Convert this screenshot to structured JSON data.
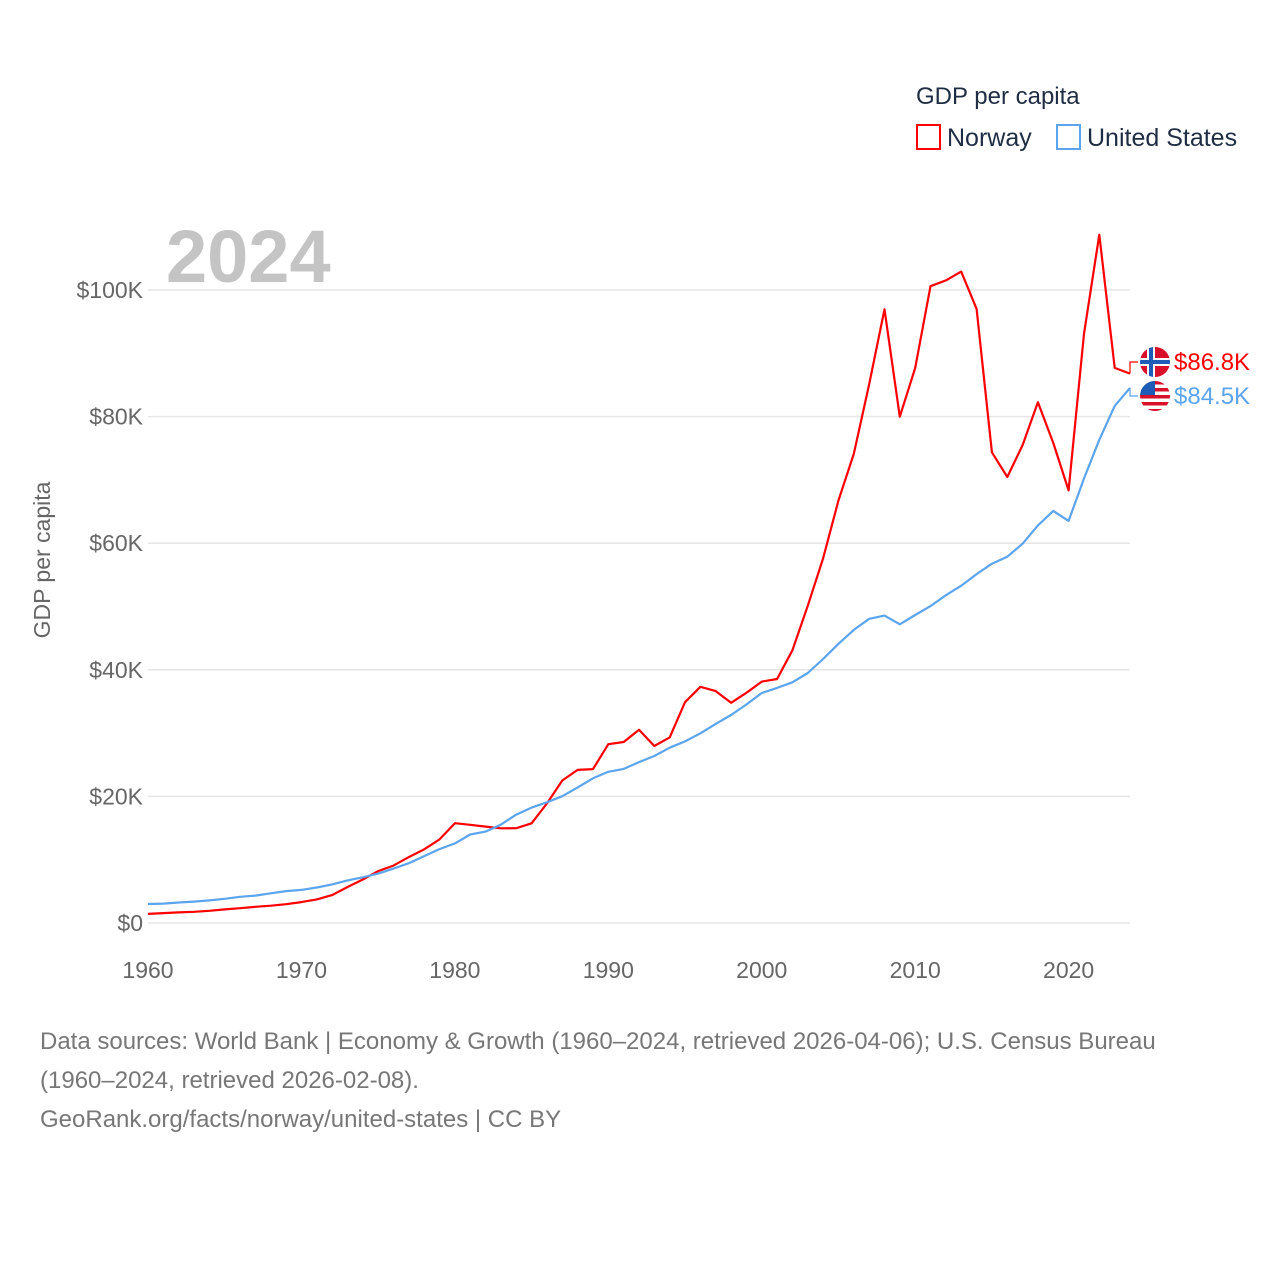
{
  "chart_data": {
    "type": "line",
    "title": "GDP per capita",
    "ylabel": "GDP per capita",
    "xlabel": "",
    "year_label": "2024",
    "xlim": [
      1960,
      2024
    ],
    "ylim": [
      0,
      110000
    ],
    "x_ticks": [
      "1960",
      "1970",
      "1980",
      "1990",
      "2000",
      "2010",
      "2020"
    ],
    "x_tick_values": [
      1960,
      1970,
      1980,
      1990,
      2000,
      2010,
      2020
    ],
    "y_ticks": [
      "$0",
      "$20K",
      "$40K",
      "$60K",
      "$80K",
      "$100K"
    ],
    "y_tick_values": [
      0,
      20000,
      40000,
      60000,
      80000,
      100000
    ],
    "grid": true,
    "legend_placement": "top-right",
    "x": [
      1960,
      1961,
      1962,
      1963,
      1964,
      1965,
      1966,
      1967,
      1968,
      1969,
      1970,
      1971,
      1972,
      1973,
      1974,
      1975,
      1976,
      1977,
      1978,
      1979,
      1980,
      1981,
      1982,
      1983,
      1984,
      1985,
      1986,
      1987,
      1988,
      1989,
      1990,
      1991,
      1992,
      1993,
      1994,
      1995,
      1996,
      1997,
      1998,
      1999,
      2000,
      2001,
      2002,
      2003,
      2004,
      2005,
      2006,
      2007,
      2008,
      2009,
      2010,
      2011,
      2012,
      2013,
      2014,
      2015,
      2016,
      2017,
      2018,
      2019,
      2020,
      2021,
      2022,
      2023,
      2024
    ],
    "series": [
      {
        "name": "Norway",
        "color": "#ff0000",
        "end_label": "$86.8K",
        "flag": "norway-flag",
        "values": [
          1442,
          1563,
          1668,
          1771,
          1934,
          2150,
          2331,
          2553,
          2730,
          2964,
          3306,
          3736,
          4413,
          5689,
          6876,
          8204,
          9075,
          10406,
          11636,
          13209,
          15772,
          15513,
          15225,
          14957,
          14969,
          15749,
          18884,
          22508,
          24193,
          24318,
          28243,
          28598,
          30526,
          27963,
          29315,
          34876,
          37321,
          36629,
          34788,
          36372,
          38131,
          38543,
          43084,
          50134,
          57604,
          66775,
          74115,
          85139,
          96944,
          79978,
          87693,
          100600,
          101524,
          102913,
          97019,
          74356,
          70461,
          75497,
          82268,
          75826,
          68340,
          93073,
          108729,
          87700,
          86800
        ]
      },
      {
        "name": "United States",
        "color": "#5ba4ee",
        "end_label": "$84.5K",
        "flag": "us-flag",
        "values": [
          3007,
          3067,
          3244,
          3375,
          3574,
          3828,
          4146,
          4336,
          4696,
          5032,
          5234,
          5609,
          6094,
          6726,
          7226,
          7801,
          8592,
          9453,
          10565,
          11674,
          12575,
          13976,
          14434,
          15544,
          17121,
          18237,
          19071,
          20039,
          21417,
          22857,
          23889,
          24342,
          25419,
          26387,
          27695,
          28691,
          29968,
          31459,
          32854,
          34513,
          36330,
          37134,
          38023,
          39496,
          41713,
          44115,
          46299,
          48050,
          48570,
          47195,
          48651,
          50066,
          51784,
          53291,
          55124,
          56763,
          57867,
          59915,
          62805,
          65095,
          63528,
          70220,
          76330,
          81695,
          84534
        ]
      }
    ]
  },
  "footer": {
    "line1": "Data sources: World Bank | Economy & Growth (1960–2024, retrieved 2026-04-06); U.S. Census Bureau",
    "line2": "(1960–2024, retrieved 2026-02-08).",
    "line3": "GeoRank.org/facts/norway/united-states | CC BY"
  }
}
